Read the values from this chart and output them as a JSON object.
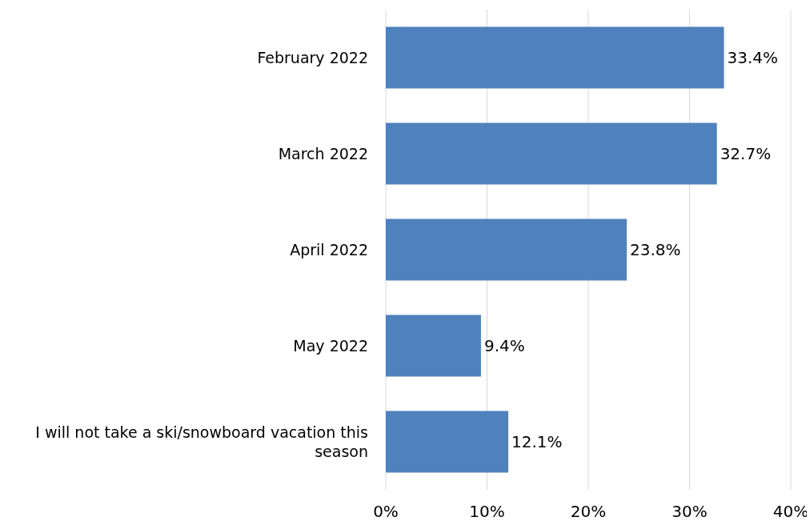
{
  "chart_data": {
    "type": "bar",
    "orientation": "horizontal",
    "categories": [
      "February 2022",
      "March 2022",
      "April 2022",
      "May 2022",
      "I will not take a ski/snowboard vacation this season"
    ],
    "values": [
      33.4,
      32.7,
      23.8,
      9.4,
      12.1
    ],
    "value_labels": [
      "33.4%",
      "32.7%",
      "23.8%",
      "9.4%",
      "12.1%"
    ],
    "color": "#4f81bd",
    "xlim": [
      0,
      40
    ],
    "xticks": [
      {
        "value": 0,
        "label": "0%"
      },
      {
        "value": 10,
        "label": "10%"
      },
      {
        "value": 20,
        "label": "20%"
      },
      {
        "value": 30,
        "label": "30%"
      },
      {
        "value": 40,
        "label": "40%"
      }
    ],
    "grid": "x"
  }
}
